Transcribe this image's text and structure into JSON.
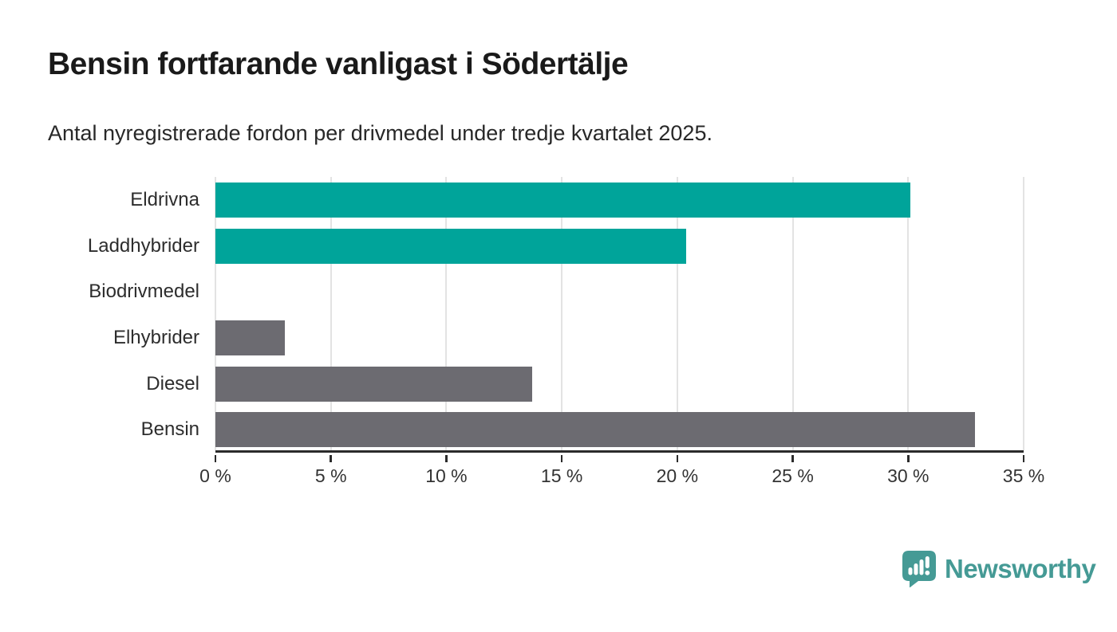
{
  "header": {
    "title": "Bensin fortfarande vanligast i Södertälje",
    "subtitle": "Antal nyregistrerade fordon per drivmedel under tredje kvartalet 2025."
  },
  "chart_data": {
    "type": "bar",
    "orientation": "horizontal",
    "title": "Bensin fortfarande vanligast i Södertälje",
    "subtitle": "Antal nyregistrerade fordon per drivmedel under tredje kvartalet 2025.",
    "categories": [
      "Eldrivna",
      "Laddhybrider",
      "Biodrivmedel",
      "Elhybrider",
      "Diesel",
      "Bensin"
    ],
    "values": [
      30.1,
      20.4,
      0,
      3.0,
      13.7,
      32.9
    ],
    "unit": "%",
    "bar_colors": [
      "#00a49a",
      "#00a49a",
      "#6c6b71",
      "#6c6b71",
      "#6c6b71",
      "#6c6b71"
    ],
    "xlabel": "",
    "ylabel": "",
    "xlim": [
      0,
      35
    ],
    "x_tick_values": [
      0,
      5,
      10,
      15,
      20,
      25,
      30,
      35
    ],
    "x_tick_labels": [
      "0 %",
      "5 %",
      "10 %",
      "15 %",
      "20 %",
      "25 %",
      "30 %",
      "35 %"
    ],
    "grid": "vertical",
    "legend": false
  },
  "branding": {
    "logo_text": "Newsworthy",
    "logo_color": "#459a95",
    "logo_icon": "speech-bubble-bar-chart-icon"
  },
  "colors": {
    "highlight_teal": "#00a49a",
    "neutral_gray": "#6c6b71",
    "gridline": "#e3e3e3",
    "axis_line": "#2b2b2b",
    "title_text": "#1a1a1a",
    "body_text": "#2d2d2d",
    "background": "#ffffff"
  }
}
